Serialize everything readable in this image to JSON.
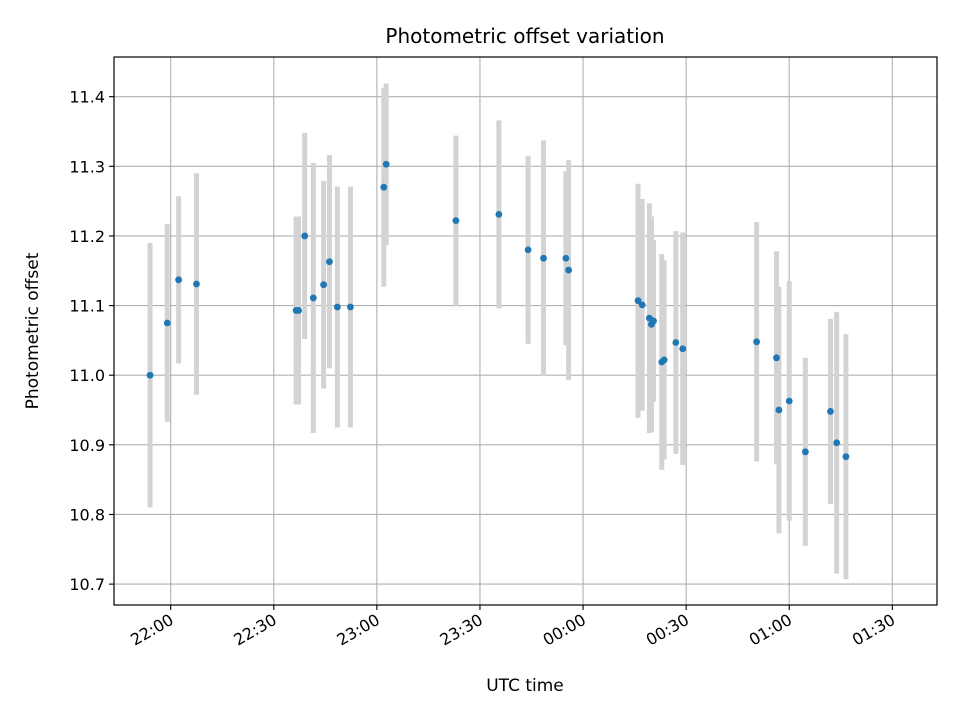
{
  "chart_data": {
    "type": "scatter",
    "title": "Photometric offset variation",
    "xlabel": "UTC time",
    "ylabel": "Photometric offset",
    "x_unit": "minutes from 22:00 UTC",
    "xlim": [
      -16.5,
      223
    ],
    "ylim": [
      10.67,
      11.457
    ],
    "grid": true,
    "xticks": [
      {
        "value": 0,
        "label": "22:00"
      },
      {
        "value": 30,
        "label": "22:30"
      },
      {
        "value": 60,
        "label": "23:00"
      },
      {
        "value": 90,
        "label": "23:30"
      },
      {
        "value": 120,
        "label": "00:00"
      },
      {
        "value": 150,
        "label": "00:30"
      },
      {
        "value": 180,
        "label": "01:00"
      },
      {
        "value": 210,
        "label": "01:30"
      }
    ],
    "yticks": [
      {
        "value": 10.7,
        "label": "10.7"
      },
      {
        "value": 10.8,
        "label": "10.8"
      },
      {
        "value": 10.9,
        "label": "10.9"
      },
      {
        "value": 11.0,
        "label": "11.0"
      },
      {
        "value": 11.1,
        "label": "11.1"
      },
      {
        "value": 11.2,
        "label": "11.2"
      },
      {
        "value": 11.3,
        "label": "11.3"
      },
      {
        "value": 11.4,
        "label": "11.4"
      }
    ],
    "colors": {
      "point": "#1f77b4",
      "errorbar": "#d3d3d3",
      "grid": "#b0b0b0"
    },
    "points": [
      {
        "x": -6.0,
        "y": 11.0,
        "yerr": 0.19
      },
      {
        "x": -1.0,
        "y": 11.075,
        "yerr": 0.142
      },
      {
        "x": 2.3,
        "y": 11.137,
        "yerr": 0.12
      },
      {
        "x": 7.5,
        "y": 11.131,
        "yerr": 0.159
      },
      {
        "x": 36.5,
        "y": 11.093,
        "yerr": 0.135
      },
      {
        "x": 37.2,
        "y": 11.093,
        "yerr": 0.135
      },
      {
        "x": 39.0,
        "y": 11.2,
        "yerr": 0.148
      },
      {
        "x": 41.5,
        "y": 11.111,
        "yerr": 0.194
      },
      {
        "x": 44.5,
        "y": 11.13,
        "yerr": 0.149
      },
      {
        "x": 46.2,
        "y": 11.163,
        "yerr": 0.153
      },
      {
        "x": 48.5,
        "y": 11.098,
        "yerr": 0.173
      },
      {
        "x": 52.3,
        "y": 11.098,
        "yerr": 0.173
      },
      {
        "x": 62.0,
        "y": 11.27,
        "yerr": 0.143
      },
      {
        "x": 62.7,
        "y": 11.303,
        "yerr": 0.116
      },
      {
        "x": 83.0,
        "y": 11.222,
        "yerr": 0.122
      },
      {
        "x": 95.5,
        "y": 11.231,
        "yerr": 0.135
      },
      {
        "x": 104.0,
        "y": 11.18,
        "yerr": 0.135
      },
      {
        "x": 108.5,
        "y": 11.168,
        "yerr": 0.169
      },
      {
        "x": 115.0,
        "y": 11.168,
        "yerr": 0.125
      },
      {
        "x": 115.8,
        "y": 11.151,
        "yerr": 0.158
      },
      {
        "x": 136.0,
        "y": 11.107,
        "yerr": 0.168
      },
      {
        "x": 137.2,
        "y": 11.101,
        "yerr": 0.152
      },
      {
        "x": 139.3,
        "y": 11.082,
        "yerr": 0.165
      },
      {
        "x": 139.9,
        "y": 11.073,
        "yerr": 0.155
      },
      {
        "x": 140.5,
        "y": 11.078,
        "yerr": 0.116
      },
      {
        "x": 142.9,
        "y": 11.019,
        "yerr": 0.155
      },
      {
        "x": 143.6,
        "y": 11.022,
        "yerr": 0.143
      },
      {
        "x": 147.0,
        "y": 11.047,
        "yerr": 0.16
      },
      {
        "x": 149.0,
        "y": 11.038,
        "yerr": 0.167
      },
      {
        "x": 170.5,
        "y": 11.048,
        "yerr": 0.172
      },
      {
        "x": 176.3,
        "y": 11.025,
        "yerr": 0.153
      },
      {
        "x": 177.0,
        "y": 10.95,
        "yerr": 0.177
      },
      {
        "x": 180.0,
        "y": 10.963,
        "yerr": 0.172
      },
      {
        "x": 184.7,
        "y": 10.89,
        "yerr": 0.135
      },
      {
        "x": 192.0,
        "y": 10.948,
        "yerr": 0.133
      },
      {
        "x": 193.8,
        "y": 10.903,
        "yerr": 0.188
      },
      {
        "x": 196.5,
        "y": 10.883,
        "yerr": 0.176
      }
    ]
  }
}
